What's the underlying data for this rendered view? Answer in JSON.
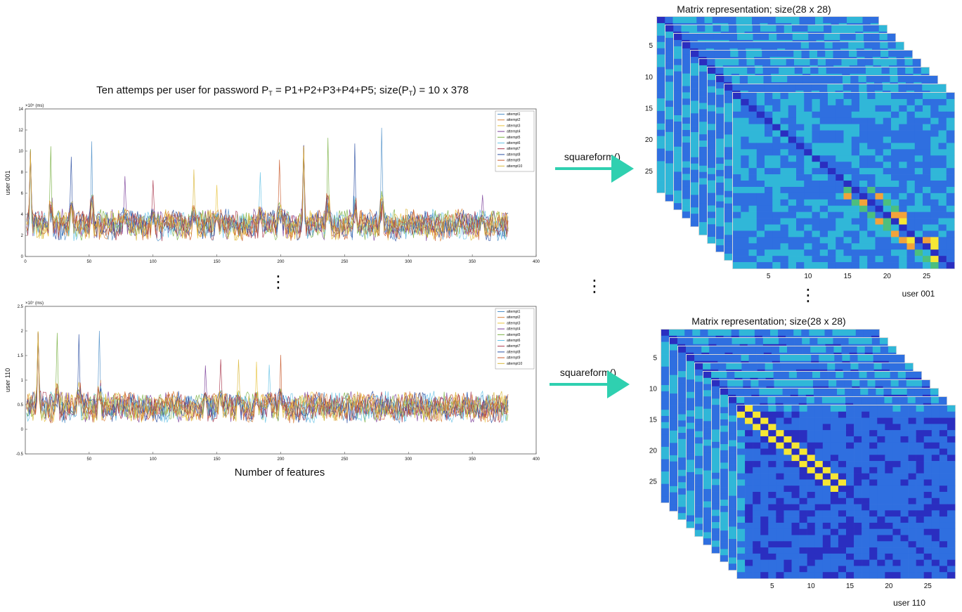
{
  "figure": {
    "main_title": "Ten attemps per user for password P",
    "main_title_sub": "T",
    "main_title_mid": " = P1+P2+P3+P4+P5; size(P",
    "main_title_sub2": "T",
    "main_title_end": ") = 10 x 378",
    "x_axis_label": "Number of features",
    "arrow_label": "squareform()",
    "matrix_title": "Matrix representation; size(28 x 28)",
    "vertical_ellipsis": "⋮"
  },
  "colors": {
    "line_palette": [
      "#4f90c9",
      "#d9823a",
      "#e8c33d",
      "#7b3f99",
      "#78b041",
      "#67c3e6",
      "#a8344a",
      "#2b4fa3",
      "#c95a2b",
      "#d9b73a"
    ],
    "arrow": "#2fd0b0",
    "matrix_dark": "#2a2ec0",
    "matrix_mid": "#2f6fe0",
    "matrix_cyan": "#30b7d8",
    "matrix_green": "#4cbf7e",
    "matrix_yellow": "#f6e734",
    "matrix_orange": "#f2a33a"
  },
  "chart_data": [
    {
      "type": "line",
      "ylabel": "user 001",
      "y_exponent": "×10⁵ (ms)",
      "xlim": [
        0,
        400
      ],
      "ylim": [
        0,
        14
      ],
      "x_ticks": [
        "0",
        "50",
        "100",
        "150",
        "200",
        "250",
        "300",
        "350",
        "400"
      ],
      "y_ticks": [
        "0",
        "2",
        "4",
        "6",
        "8",
        "10",
        "12",
        "14"
      ],
      "n_points": 378,
      "baseline": 3,
      "spikes": [
        {
          "x": 3,
          "y": 10.2
        },
        {
          "x": 19,
          "y": 10.5
        },
        {
          "x": 35,
          "y": 9.5
        },
        {
          "x": 51,
          "y": 11.2
        },
        {
          "x": 77,
          "y": 7.8
        },
        {
          "x": 99,
          "y": 7.4
        },
        {
          "x": 131,
          "y": 8.3
        },
        {
          "x": 149,
          "y": 6.8
        },
        {
          "x": 183,
          "y": 8.0
        },
        {
          "x": 198,
          "y": 9.3
        },
        {
          "x": 217,
          "y": 10.6
        },
        {
          "x": 236,
          "y": 11.6
        },
        {
          "x": 257,
          "y": 11.0
        },
        {
          "x": 278,
          "y": 12.3
        },
        {
          "x": 357,
          "y": 6.0
        }
      ],
      "legend": [
        "attempt1",
        "attempt2",
        "attempt3",
        "attempt4",
        "attempt5",
        "attempt6",
        "attempt7",
        "attempt8",
        "attempt9",
        "attempt10"
      ]
    },
    {
      "type": "line",
      "ylabel": "user 110",
      "y_exponent": "×10⁷ (ms)",
      "xlim": [
        0,
        400
      ],
      "ylim": [
        -0.5,
        2.5
      ],
      "x_ticks": [
        "50",
        "100",
        "150",
        "200",
        "250",
        "300",
        "350",
        "400"
      ],
      "y_ticks": [
        "-0.5",
        "0",
        "0.5",
        "1",
        "1.5",
        "2",
        "2.5"
      ],
      "n_points": 378,
      "baseline": 0.45,
      "spikes": [
        {
          "x": 9,
          "y": 2.0
        },
        {
          "x": 24,
          "y": 2.0
        },
        {
          "x": 41,
          "y": 1.95
        },
        {
          "x": 57,
          "y": 2.05
        },
        {
          "x": 140,
          "y": 1.3
        },
        {
          "x": 152,
          "y": 1.45
        },
        {
          "x": 166,
          "y": 1.45
        },
        {
          "x": 180,
          "y": 1.4
        },
        {
          "x": 190,
          "y": 1.35
        },
        {
          "x": 199,
          "y": 1.55
        }
      ],
      "legend": [
        "attempt1",
        "attempt2",
        "attempt3",
        "attempt4",
        "attempt5",
        "attempt6",
        "attempt7",
        "attempt8",
        "attempt9",
        "attempt10"
      ]
    },
    {
      "type": "heatmap",
      "title": "Matrix representation; size(28 x 28)",
      "user_label": "user 001",
      "size": 28,
      "x_ticks": [
        "5",
        "10",
        "15",
        "20",
        "25"
      ],
      "y_ticks": [
        "5",
        "10",
        "15",
        "20",
        "25"
      ],
      "stack_depth": 10
    },
    {
      "type": "heatmap",
      "title": "Matrix representation; size(28 x 28)",
      "user_label": "user 110",
      "size": 28,
      "x_ticks": [
        "5",
        "10",
        "15",
        "20",
        "25"
      ],
      "y_ticks": [
        "5",
        "10",
        "15",
        "20",
        "25"
      ],
      "stack_depth": 10
    }
  ]
}
